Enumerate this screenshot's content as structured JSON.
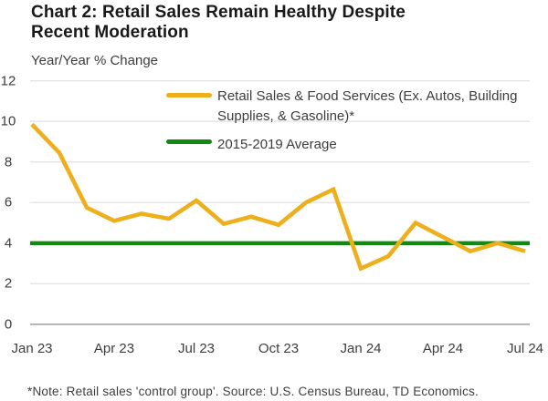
{
  "header": {
    "title_line1": "Chart 2: Retail Sales Remain Healthy Despite",
    "title_line2": "Recent Moderation",
    "units_label": "Year/Year % Change"
  },
  "legend": {
    "series1_line1": "Retail Sales & Food Services (Ex. Autos, Building",
    "series1_line2": "Supplies, & Gasoline)*",
    "series2_label": "2015-2019 Average"
  },
  "footer": {
    "note": "*Note: Retail sales 'control group'. Source: U.S. Census Bureau, TD Economics."
  },
  "chart_data": {
    "type": "line",
    "title": "Chart 2: Retail Sales Remain Healthy Despite Recent Moderation",
    "ylabel": "Year/Year % Change",
    "xlabel": "",
    "ylim": [
      0,
      12
    ],
    "y_ticks": [
      0,
      2,
      4,
      6,
      8,
      10,
      12
    ],
    "x_tick_labels": [
      "Jan 23",
      "Apr 23",
      "Jul 23",
      "Oct 23",
      "Jan 24",
      "Apr 24",
      "Jul 24"
    ],
    "x_months": [
      "Jan 23",
      "Feb 23",
      "Mar 23",
      "Apr 23",
      "May 23",
      "Jun 23",
      "Jul 23",
      "Aug 23",
      "Sep 23",
      "Oct 23",
      "Nov 23",
      "Dec 23",
      "Jan 24",
      "Feb 24",
      "Mar 24",
      "Apr 24",
      "May 24",
      "Jun 24",
      "Jul 24"
    ],
    "series": [
      {
        "name": "Retail Sales & Food Services (Ex. Autos, Building Supplies, & Gasoline)*",
        "type": "line",
        "color": "#edaf1c",
        "values": [
          9.85,
          8.45,
          5.75,
          5.1,
          5.45,
          5.2,
          6.1,
          4.95,
          5.3,
          4.9,
          6.0,
          6.65,
          2.75,
          3.35,
          5.0,
          4.3,
          3.6,
          4.0,
          3.6
        ]
      },
      {
        "name": "2015-2019 Average",
        "type": "hline",
        "color": "#118a11",
        "value": 4.0
      }
    ],
    "grid": "horizontal",
    "legend_position": "inside-top",
    "colors": {
      "gridline": "#e4e4e4",
      "zero_line": "#a6a6a6",
      "text": "#3d3d3d",
      "title": "#191919",
      "background": "#ffffff"
    }
  }
}
